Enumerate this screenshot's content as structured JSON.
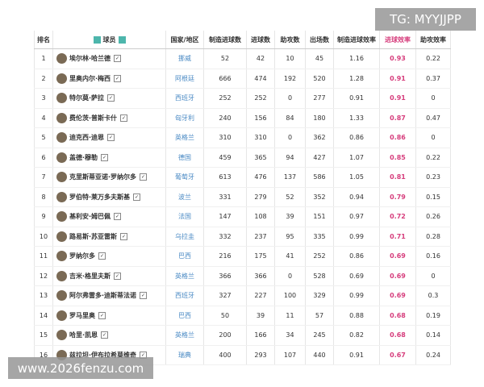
{
  "watermark_top": "TG: MYYJJPP",
  "watermark_bottom": "www.2026fenzu.com",
  "table": {
    "headers": [
      "排名",
      "球员",
      "国家/地区",
      "制造进球数",
      "进球数",
      "助攻数",
      "出场数",
      "制造进球效率",
      "进球效率",
      "助攻效率"
    ],
    "rows": [
      [
        1,
        "埃尔林·哈兰德",
        "挪威",
        52,
        42,
        10,
        45,
        1.16,
        0.93,
        0.22
      ],
      [
        2,
        "里奥内尔·梅西",
        "阿根廷",
        666,
        474,
        192,
        520,
        1.28,
        0.91,
        0.37
      ],
      [
        3,
        "特尔莫·萨拉",
        "西班牙",
        252,
        252,
        0,
        277,
        0.91,
        0.91,
        0
      ],
      [
        4,
        "费伦茨·普斯卡什",
        "匈牙利",
        240,
        156,
        84,
        180,
        1.33,
        0.87,
        0.47
      ],
      [
        5,
        "迪克西·迪恩",
        "英格兰",
        310,
        310,
        0,
        362,
        0.86,
        0.86,
        0
      ],
      [
        6,
        "盖德·穆勒",
        "德国",
        459,
        365,
        94,
        427,
        1.07,
        0.85,
        0.22
      ],
      [
        7,
        "克里斯蒂亚诺·罗纳尔多",
        "葡萄牙",
        613,
        476,
        137,
        586,
        1.05,
        0.81,
        0.23
      ],
      [
        8,
        "罗伯特·莱万多夫斯基",
        "波兰",
        331,
        279,
        52,
        352,
        0.94,
        0.79,
        0.15
      ],
      [
        9,
        "基利安·姆巴佩",
        "法国",
        147,
        108,
        39,
        151,
        0.97,
        0.72,
        0.26
      ],
      [
        10,
        "路易斯·苏亚雷斯",
        "乌拉圭",
        332,
        237,
        95,
        335,
        0.99,
        0.71,
        0.28
      ],
      [
        11,
        "罗纳尔多",
        "巴西",
        216,
        175,
        41,
        252,
        0.86,
        0.69,
        0.16
      ],
      [
        12,
        "吉米·格里夫斯",
        "英格兰",
        366,
        366,
        0,
        528,
        0.69,
        0.69,
        0
      ],
      [
        13,
        "阿尔弗雷多·迪斯蒂法诺",
        "西班牙",
        327,
        227,
        100,
        329,
        0.99,
        0.69,
        0.3
      ],
      [
        14,
        "罗马里奥",
        "巴西",
        50,
        39,
        11,
        57,
        0.88,
        0.68,
        0.19
      ],
      [
        15,
        "哈里·凯恩",
        "英格兰",
        200,
        166,
        34,
        245,
        0.82,
        0.68,
        0.14
      ],
      [
        16,
        "兹拉坦·伊布拉希莫维奇",
        "瑞典",
        400,
        293,
        107,
        440,
        0.91,
        0.67,
        0.24
      ]
    ]
  }
}
